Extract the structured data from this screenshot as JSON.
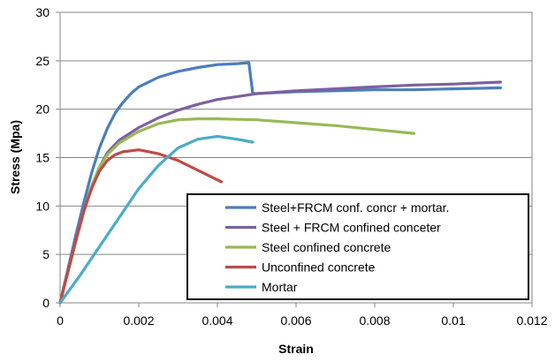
{
  "chart_data": {
    "type": "line",
    "xlabel": "Strain",
    "ylabel": "Stress (Mpa)",
    "xlim": [
      0,
      0.012
    ],
    "ylim": [
      0,
      30
    ],
    "x_ticks": [
      "0",
      "0.002",
      "0.004",
      "0.006",
      "0.008",
      "0.01",
      "0.012"
    ],
    "y_ticks": [
      "0",
      "5",
      "10",
      "15",
      "20",
      "25",
      "30"
    ],
    "grid": "horizontal",
    "legend_position": "bottom-right",
    "series": [
      {
        "name": "Steel+FRCM conf. concr + mortar.",
        "color": "#4A7EBB",
        "points": [
          [
            0,
            0
          ],
          [
            0.0002,
            3.5
          ],
          [
            0.0004,
            7
          ],
          [
            0.0006,
            10.3
          ],
          [
            0.0008,
            13.4
          ],
          [
            0.001,
            16
          ],
          [
            0.0012,
            18
          ],
          [
            0.0014,
            19.6
          ],
          [
            0.0016,
            20.7
          ],
          [
            0.0018,
            21.6
          ],
          [
            0.002,
            22.3
          ],
          [
            0.0025,
            23.3
          ],
          [
            0.003,
            23.9
          ],
          [
            0.0035,
            24.3
          ],
          [
            0.004,
            24.6
          ],
          [
            0.0045,
            24.7
          ],
          [
            0.0048,
            24.8
          ],
          [
            0.0049,
            21.6
          ],
          [
            0.006,
            21.8
          ],
          [
            0.007,
            21.9
          ],
          [
            0.008,
            22
          ],
          [
            0.009,
            22
          ],
          [
            0.01,
            22.1
          ],
          [
            0.0112,
            22.2
          ]
        ]
      },
      {
        "name": "Steel + FRCM confined conceter",
        "color": "#7D60A0",
        "points": [
          [
            0,
            0
          ],
          [
            0.0002,
            3.3
          ],
          [
            0.0004,
            6.5
          ],
          [
            0.0006,
            9.5
          ],
          [
            0.0008,
            12
          ],
          [
            0.001,
            14
          ],
          [
            0.0012,
            15.5
          ],
          [
            0.0015,
            16.8
          ],
          [
            0.002,
            18.1
          ],
          [
            0.0025,
            19.1
          ],
          [
            0.003,
            19.9
          ],
          [
            0.0035,
            20.5
          ],
          [
            0.004,
            21
          ],
          [
            0.0045,
            21.3
          ],
          [
            0.005,
            21.6
          ],
          [
            0.006,
            21.9
          ],
          [
            0.007,
            22.1
          ],
          [
            0.008,
            22.3
          ],
          [
            0.009,
            22.5
          ],
          [
            0.01,
            22.6
          ],
          [
            0.0112,
            22.8
          ]
        ]
      },
      {
        "name": "Steel confined concrete",
        "color": "#98B954",
        "points": [
          [
            0,
            0
          ],
          [
            0.0002,
            3.2
          ],
          [
            0.0004,
            6.4
          ],
          [
            0.0006,
            9.4
          ],
          [
            0.0008,
            12
          ],
          [
            0.001,
            14
          ],
          [
            0.0012,
            15.3
          ],
          [
            0.0015,
            16.5
          ],
          [
            0.002,
            17.7
          ],
          [
            0.0025,
            18.5
          ],
          [
            0.003,
            18.9
          ],
          [
            0.0035,
            19
          ],
          [
            0.004,
            19
          ],
          [
            0.005,
            18.9
          ],
          [
            0.006,
            18.6
          ],
          [
            0.007,
            18.3
          ],
          [
            0.008,
            17.9
          ],
          [
            0.009,
            17.5
          ]
        ]
      },
      {
        "name": "Unconfined concrete",
        "color": "#BE4B48",
        "points": [
          [
            0,
            0
          ],
          [
            0.0002,
            3.2
          ],
          [
            0.0004,
            6.4
          ],
          [
            0.0006,
            9.4
          ],
          [
            0.0008,
            11.8
          ],
          [
            0.001,
            13.6
          ],
          [
            0.0012,
            14.7
          ],
          [
            0.0014,
            15.3
          ],
          [
            0.0016,
            15.6
          ],
          [
            0.0018,
            15.7
          ],
          [
            0.002,
            15.8
          ],
          [
            0.0025,
            15.4
          ],
          [
            0.003,
            14.7
          ],
          [
            0.0035,
            13.7
          ],
          [
            0.0041,
            12.5
          ]
        ]
      },
      {
        "name": "Mortar",
        "color": "#4BACC6",
        "points": [
          [
            0,
            0
          ],
          [
            0.0005,
            2.8
          ],
          [
            0.001,
            5.8
          ],
          [
            0.0015,
            8.8
          ],
          [
            0.002,
            11.8
          ],
          [
            0.0025,
            14.2
          ],
          [
            0.003,
            16
          ],
          [
            0.0035,
            16.9
          ],
          [
            0.004,
            17.2
          ],
          [
            0.0045,
            16.9
          ],
          [
            0.0049,
            16.6
          ]
        ]
      }
    ]
  }
}
